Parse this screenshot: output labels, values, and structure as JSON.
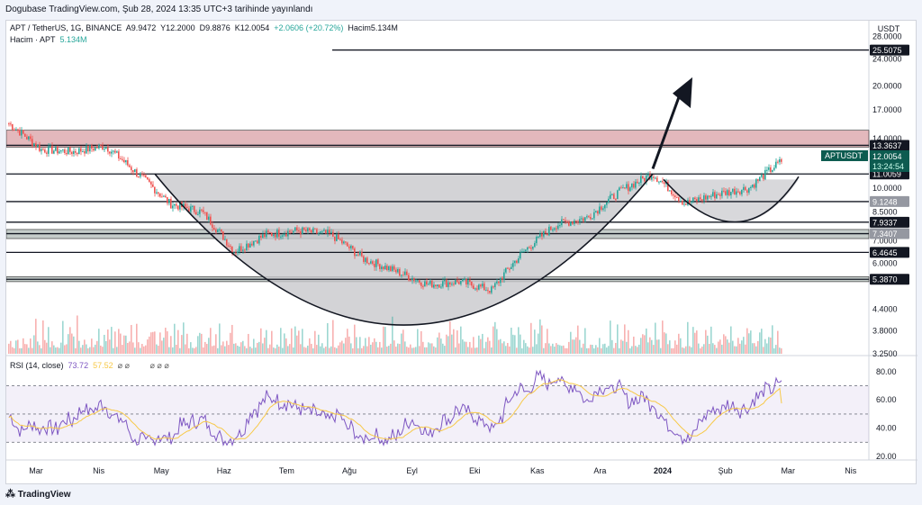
{
  "header": {
    "publish_line": "Dogubase TradingView.com, Şub 28, 2024 13:35 UTC+3 tarihinde yayınlandı"
  },
  "legend": {
    "symbol": "APT / TetherUS, 1G, BINANCE",
    "open": "A9.9472",
    "high": "Y12.2000",
    "low": "D9.8876",
    "close": "K12.0054",
    "change": "+2.0606 (+20.72%)",
    "volume_inline": "Hacim5.134M",
    "volume_label": "Hacim · APT",
    "volume_value": "5.134M",
    "rsi_label": "RSI (14, close)",
    "rsi_value": "73.72",
    "rsi_ma_value": "57.52",
    "rsi_extra": "⌀ ⌀",
    "rsi_extra2": "⌀ ⌀ ⌀"
  },
  "price_axis": {
    "currency": "USDT",
    "ticks": [
      "28.0000",
      "24.0000",
      "20.0000",
      "17.0000",
      "14.0000",
      "10.0000",
      "8.5000",
      "7.0000",
      "6.0000",
      "4.4000",
      "3.8000",
      "3.2500"
    ],
    "badges": [
      {
        "text": "25.5075",
        "style": "dark"
      },
      {
        "text": "13.3637",
        "style": "dark"
      },
      {
        "text": "11.0059",
        "style": "dark"
      },
      {
        "text": "9.1248",
        "style": "gray"
      },
      {
        "text": "7.9337",
        "style": "dark"
      },
      {
        "text": "7.3407",
        "style": "gray"
      },
      {
        "text": "6.4645",
        "style": "dark"
      },
      {
        "text": "5.3870",
        "style": "dark"
      }
    ],
    "current": {
      "symbol": "APTUSDT",
      "price": "12.0054",
      "countdown": "13:24:54"
    }
  },
  "rsi_axis": {
    "ticks": [
      "80.00",
      "60.00",
      "40.00",
      "20.00"
    ]
  },
  "time_axis": {
    "labels": [
      "Mar",
      "Nis",
      "May",
      "Haz",
      "Tem",
      "Ağu",
      "Eyl",
      "Eki",
      "Kas",
      "Ara",
      "2024",
      "Şub",
      "Mar",
      "Nis"
    ]
  },
  "brand": {
    "name": "TradingView"
  },
  "colors": {
    "up": "#26a69a",
    "down": "#ef5350",
    "rsi": "#7e57c2",
    "rsi_ma": "#f7c948",
    "resistance_zone": "#d9a0a6",
    "support_zone": "#b2bcb8",
    "pattern_fill": "#c8c8cc"
  },
  "chart_data": {
    "type": "candlestick",
    "symbol": "APT / TetherUS, 1G, BINANCE",
    "y_scale": "log",
    "ylim": [
      3.25,
      30
    ],
    "x_range": [
      "2023-03",
      "2024-04"
    ],
    "horizontal_levels": [
      25.5075,
      13.3637,
      11.0059,
      9.1248,
      7.9337,
      7.3407,
      6.4645,
      5.387
    ],
    "zones": [
      {
        "from": 13.2,
        "to": 14.8,
        "kind": "resistance"
      },
      {
        "from": 7.1,
        "to": 7.55,
        "kind": "support"
      },
      {
        "from": 5.3,
        "to": 5.48,
        "kind": "support"
      }
    ],
    "price_path": [
      {
        "month": "Mar",
        "close": 15.5
      },
      {
        "month": "Mar",
        "close": 13.0
      },
      {
        "month": "Nis",
        "close": 12.8
      },
      {
        "month": "Nis",
        "close": 13.3
      },
      {
        "month": "May",
        "close": 11.0
      },
      {
        "month": "May",
        "close": 9.0
      },
      {
        "month": "Haz",
        "close": 8.5
      },
      {
        "month": "Haz",
        "close": 6.5
      },
      {
        "month": "Tem",
        "close": 7.3
      },
      {
        "month": "Tem",
        "close": 7.5
      },
      {
        "month": "Ağu",
        "close": 7.3
      },
      {
        "month": "Ağu",
        "close": 6.2
      },
      {
        "month": "Eyl",
        "close": 5.7
      },
      {
        "month": "Eyl",
        "close": 5.2
      },
      {
        "month": "Eki",
        "close": 5.3
      },
      {
        "month": "Eki",
        "close": 5.0
      },
      {
        "month": "Kas",
        "close": 6.5
      },
      {
        "month": "Kas",
        "close": 7.8
      },
      {
        "month": "Ara",
        "close": 8.2
      },
      {
        "month": "Ara",
        "close": 9.8
      },
      {
        "month": "2024",
        "close": 11.0
      },
      {
        "month": "2024",
        "close": 9.0
      },
      {
        "month": "Şub",
        "close": 9.6
      },
      {
        "month": "Şub",
        "close": 10.0
      },
      {
        "month": "Mar",
        "close": 12.0054
      }
    ],
    "rsi": {
      "period": 14,
      "last": 73.72,
      "ma_last": 57.52,
      "levels": [
        70,
        50,
        30
      ],
      "ylim": [
        20,
        85
      ]
    }
  }
}
